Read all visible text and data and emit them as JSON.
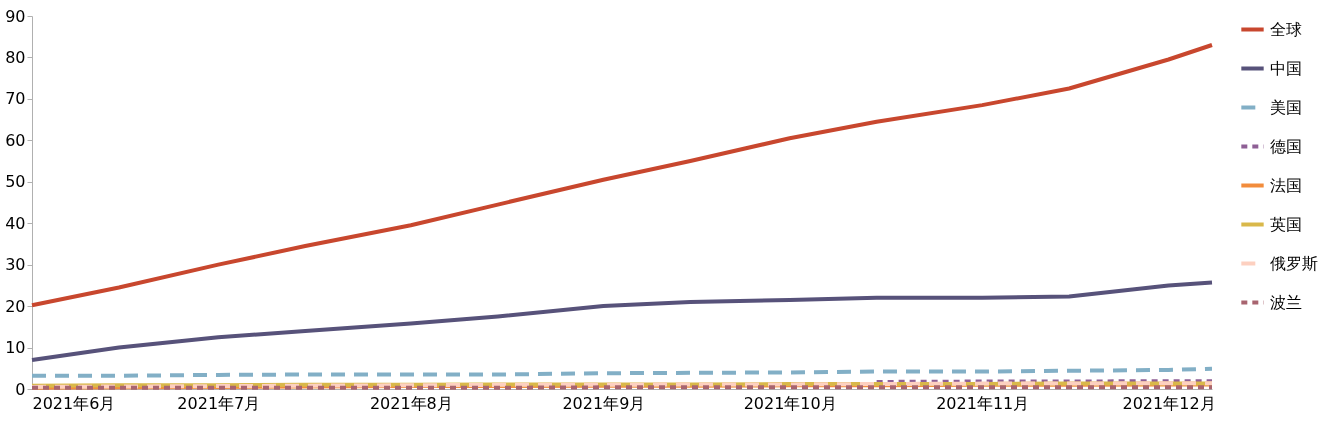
{
  "chart_data": {
    "type": "line",
    "x": [
      "2021-06-01",
      "2021-06-15",
      "2021-07-01",
      "2021-07-15",
      "2021-08-01",
      "2021-08-15",
      "2021-09-01",
      "2021-09-15",
      "2021-10-01",
      "2021-10-15",
      "2021-11-01",
      "2021-11-15",
      "2021-12-01",
      "2021-12-08"
    ],
    "xlim": [
      "2021-06-01",
      "2021-12-08"
    ],
    "xticks": [
      {
        "value": "2021-06-01",
        "label": "2021年6月"
      },
      {
        "value": "2021-07-01",
        "label": "2021年7月"
      },
      {
        "value": "2021-08-01",
        "label": "2021年8月"
      },
      {
        "value": "2021-09-01",
        "label": "2021年9月"
      },
      {
        "value": "2021-10-01",
        "label": "2021年10月"
      },
      {
        "value": "2021-11-01",
        "label": "2021年11月"
      },
      {
        "value": "2021-12-01",
        "label": "2021年12月"
      }
    ],
    "ylim": [
      0,
      90
    ],
    "yticks": [
      0,
      10,
      20,
      30,
      40,
      50,
      60,
      70,
      80,
      90
    ],
    "grid": false,
    "legend": "right",
    "series": [
      {
        "name": "全球",
        "color": "#c8472e",
        "line_style": "solid",
        "values": [
          20.2,
          24.5,
          30,
          34.5,
          39.5,
          44.5,
          50.5,
          55,
          60.5,
          64.5,
          68.5,
          72.5,
          79.5,
          83
        ]
      },
      {
        "name": "中国",
        "color": "#57527a",
        "line_style": "solid",
        "values": [
          7,
          10,
          12.5,
          14,
          15.8,
          17.5,
          20,
          21,
          21.5,
          22,
          22,
          22.3,
          25,
          25.7
        ]
      },
      {
        "name": "美国",
        "color": "#82afc6",
        "line_style": "dashed",
        "values": [
          3.2,
          3.2,
          3.4,
          3.5,
          3.5,
          3.5,
          3.8,
          3.9,
          4,
          4.2,
          4.2,
          4.4,
          4.6,
          4.9
        ]
      },
      {
        "name": "德国",
        "color": "#8e5f95",
        "line_style": "dotted",
        "values": [
          null,
          null,
          null,
          null,
          null,
          null,
          null,
          null,
          null,
          1.7,
          1.8,
          1.8,
          1.9,
          1.9
        ]
      },
      {
        "name": "法国",
        "color": "#f28c3c",
        "line_style": "solid",
        "values": [
          0.3,
          0.4,
          0.5,
          0.6,
          0.7,
          0.7,
          0.8,
          0.8,
          0.9,
          0.9,
          1,
          1,
          1.1,
          1.1
        ]
      },
      {
        "name": "英国",
        "color": "#d9b84a",
        "line_style": "solid",
        "values": [
          0.8,
          0.9,
          0.9,
          1,
          1,
          1.1,
          1.1,
          1.1,
          1.2,
          1.2,
          1.2,
          1.3,
          1.3,
          1.3
        ]
      },
      {
        "name": "俄罗斯",
        "color": "#fdd0c0",
        "line_style": "dashed",
        "values": [
          0.5,
          0.6,
          0.7,
          0.8,
          0.9,
          1,
          1,
          1.1,
          1.1,
          1.2,
          1.3,
          1.3,
          1.4,
          1.4
        ]
      },
      {
        "name": "波兰",
        "color": "#a8646f",
        "line_style": "dotted",
        "values": [
          0.3,
          0.3,
          0.3,
          0.3,
          0.3,
          0.3,
          0.4,
          0.4,
          0.4,
          0.4,
          0.4,
          0.4,
          0.4,
          0.4
        ]
      }
    ]
  }
}
